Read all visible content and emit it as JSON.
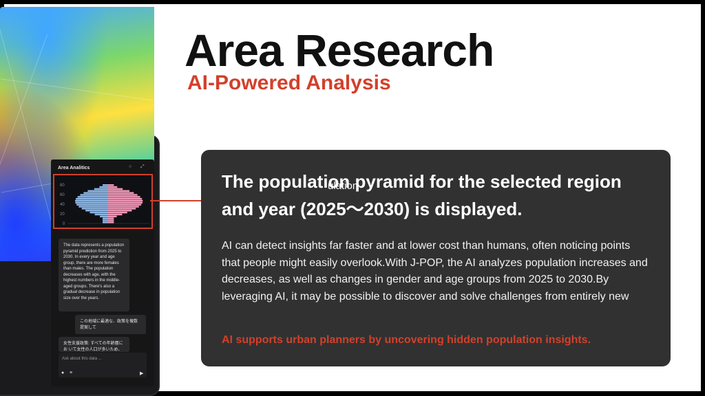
{
  "slide": {
    "title": "Area Research",
    "subtitle": "AI-Powered Analysis"
  },
  "tablet": {
    "panel_title": "Area Analitics",
    "icons": [
      "circle-icon",
      "expand-icon"
    ],
    "pyramid": {
      "y_ticks": [
        "80",
        "60",
        "40",
        "20",
        "0"
      ],
      "male_color": "#8fb8e6",
      "female_color": "#f29ab8"
    },
    "messages": [
      "The data represents a population pyramid prediction from 2025 to 2030. In every year and age group, there are more females than males. The population decreases with age, with the highest numbers in the middle-aged groups. There's also a gradual decrease in population size over the years.",
      "この地域に最適な、政策を複数提案して",
      "女性支援政策: すべての年齢層にお いて女性の人口が多いため、特に"
    ],
    "ask_placeholder": "Ask about this data ..."
  },
  "card": {
    "headline": "The population pyramid for the selected region and year (2025～2030) is displayed.",
    "overlay_text": "ulation",
    "body": "AI can detect insights far faster and at lower cost than humans, often noticing points that people might easily overlook.With J-POP, the AI analyzes population increases and decreases, as well as changes in gender and age groups from 2025 to 2030.By leveraging AI, it may be possible to discover and solve challenges from entirely new",
    "accent": "AI supports urban planners by uncovering hidden population insights."
  },
  "colors": {
    "accent": "#d2402b",
    "card_bg": "#313131"
  }
}
